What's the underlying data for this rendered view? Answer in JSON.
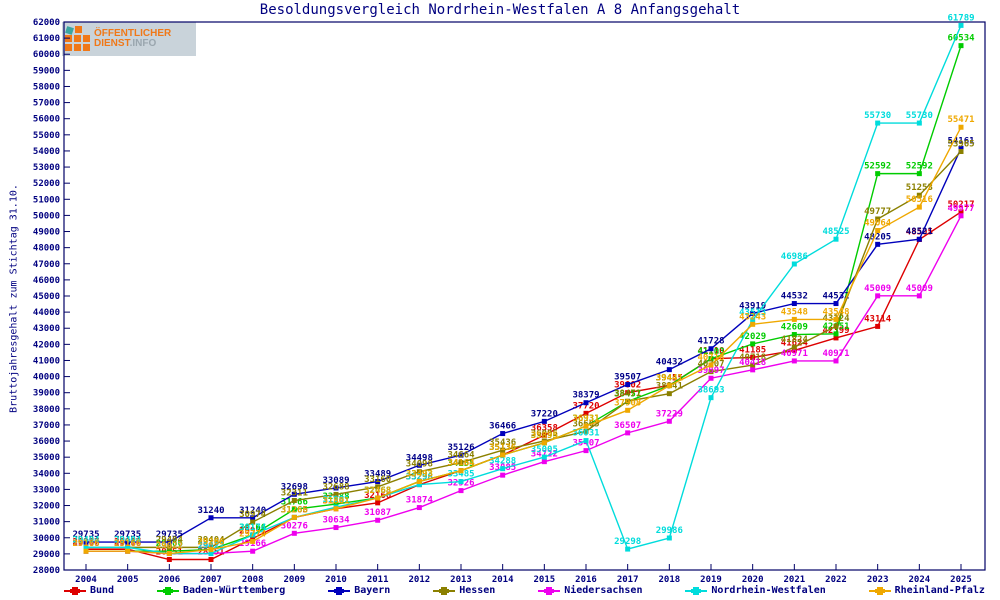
{
  "title": "Besoldungsvergleich Nordrhein-Westfalen A 8 Anfangsgehalt",
  "logo": {
    "line1": "ÖFFENTLICHER",
    "line2": "DIENST",
    "line2_suffix": ".INFO"
  },
  "y_axis_title": "Bruttojahresgehalt zum Stichtag 31.10.",
  "colors": {
    "title": "#000080",
    "axis": "#000066",
    "background": "#ffffff",
    "logo_orange": "#f07818",
    "logo_gray": "#9aa6ae",
    "logo_teal": "#3aa6a0"
  },
  "chart_data": {
    "type": "line",
    "x": [
      2004,
      2005,
      2006,
      2007,
      2008,
      2009,
      2010,
      2011,
      2012,
      2013,
      2014,
      2015,
      2016,
      2017,
      2018,
      2019,
      2020,
      2021,
      2022,
      2023,
      2024,
      2025
    ],
    "ylim": [
      28000,
      62000
    ],
    "ytick_step": 1000,
    "grid": false,
    "legend_position": "bottom",
    "point_labels": true,
    "series": [
      {
        "name": "Bund",
        "color": "#dd0000",
        "values": [
          29287,
          29287,
          28651,
          28651,
          29951,
          31263,
          31801,
          32166,
          33298,
          34164,
          35136,
          36358,
          37720,
          39002,
          39455,
          41110,
          41185,
          41624,
          42399,
          43114,
          48505,
          50217
        ]
      },
      {
        "name": "Baden-Württemberg",
        "color": "#00cc00",
        "values": [
          29166,
          29166,
          29166,
          29266,
          30166,
          31766,
          32088,
          32468,
          33493,
          34155,
          35136,
          35895,
          36931,
          38457,
          39441,
          41103,
          42029,
          42609,
          42651,
          52592,
          52592,
          60534
        ]
      },
      {
        "name": "Bayern",
        "color": "#0000bb",
        "values": [
          29735,
          29735,
          29735,
          31240,
          31240,
          32698,
          33089,
          33489,
          34498,
          35126,
          36466,
          37220,
          38379,
          39507,
          40432,
          41728,
          43919,
          44532,
          44532,
          48205,
          48521,
          54161
        ]
      },
      {
        "name": "Hessen",
        "color": "#8b8000",
        "values": [
          29404,
          29404,
          29404,
          29404,
          30974,
          32311,
          32688,
          33160,
          34098,
          34664,
          35436,
          36005,
          36605,
          38471,
          38941,
          40307,
          40718,
          41824,
          43124,
          49777,
          51253,
          53965
        ]
      },
      {
        "name": "Niedersachsen",
        "color": "#ee00ee",
        "values": [
          29166,
          29166,
          29022,
          29022,
          29166,
          30276,
          30634,
          31087,
          31874,
          32926,
          33885,
          34722,
          35407,
          36507,
          37229,
          39897,
          40418,
          40971,
          40971,
          45009,
          45009,
          49977
        ]
      },
      {
        "name": "Nordrhein-Westfalen",
        "color": "#00dcdc",
        "values": [
          29404,
          29404,
          29022,
          29022,
          30174,
          31266,
          31901,
          32468,
          33298,
          33485,
          34288,
          35005,
          36031,
          29298,
          29986,
          38693,
          43513,
          46986,
          48525,
          55730,
          55730,
          61789
        ]
      },
      {
        "name": "Rheinland-Pfalz",
        "color": "#efa800",
        "values": [
          29166,
          29166,
          29022,
          29266,
          29774,
          31266,
          31801,
          32468,
          33493,
          34164,
          35136,
          35895,
          36931,
          37908,
          39441,
          40718,
          43243,
          43548,
          43548,
          49064,
          50516,
          55471
        ]
      }
    ]
  }
}
